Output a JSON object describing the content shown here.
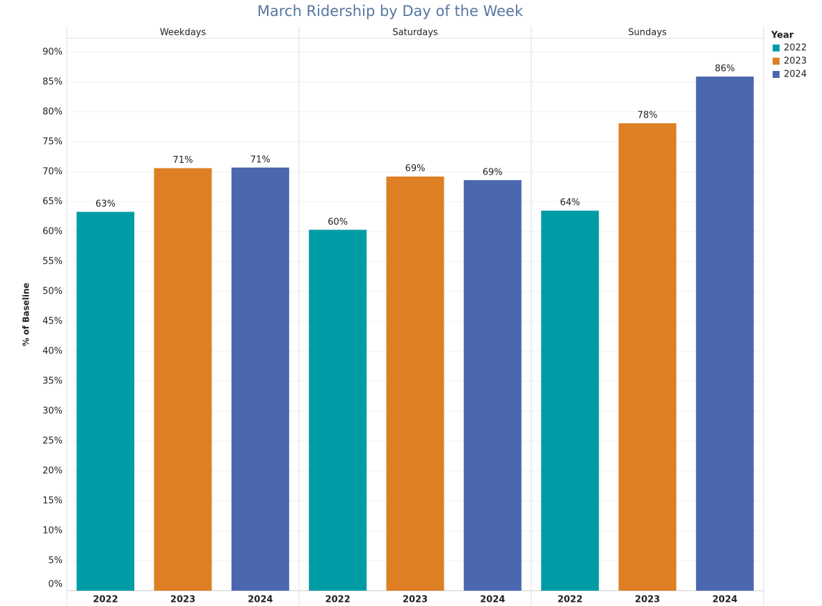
{
  "chart_data": {
    "type": "bar",
    "title": "March Ridership by Day of the Week",
    "y_label": "% of Baseline",
    "legend_title": "Year",
    "legend_position": "right",
    "categories": [
      "Weekdays",
      "Saturdays",
      "Sundays"
    ],
    "series": [
      {
        "name": "2022",
        "color": "#009ca6",
        "values": [
          63.3,
          60.3,
          63.5
        ],
        "value_labels": [
          "63%",
          "60%",
          "64%"
        ]
      },
      {
        "name": "2023",
        "color": "#de7f23",
        "values": [
          70.6,
          69.2,
          78.1
        ],
        "value_labels": [
          "71%",
          "69%",
          "78%"
        ]
      },
      {
        "name": "2024",
        "color": "#4b67b0",
        "values": [
          70.7,
          68.6,
          85.9
        ],
        "value_labels": [
          "71%",
          "69%",
          "86%"
        ]
      }
    ],
    "ylim": [
      0,
      92.3
    ],
    "yticks": [
      {
        "value": 0,
        "label": "0%"
      },
      {
        "value": 5,
        "label": "5%"
      },
      {
        "value": 10,
        "label": "10%"
      },
      {
        "value": 15,
        "label": "15%"
      },
      {
        "value": 20,
        "label": "20%"
      },
      {
        "value": 25,
        "label": "25%"
      },
      {
        "value": 30,
        "label": "30%"
      },
      {
        "value": 35,
        "label": "35%"
      },
      {
        "value": 40,
        "label": "40%"
      },
      {
        "value": 45,
        "label": "45%"
      },
      {
        "value": 50,
        "label": "50%"
      },
      {
        "value": 55,
        "label": "55%"
      },
      {
        "value": 60,
        "label": "60%"
      },
      {
        "value": 65,
        "label": "65%"
      },
      {
        "value": 70,
        "label": "70%"
      },
      {
        "value": 75,
        "label": "75%"
      },
      {
        "value": 80,
        "label": "80%"
      },
      {
        "value": 85,
        "label": "85%"
      },
      {
        "value": 90,
        "label": "90%"
      }
    ],
    "grid": true
  }
}
